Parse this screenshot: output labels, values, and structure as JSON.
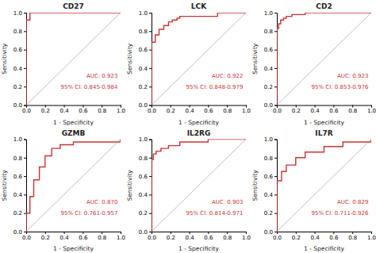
{
  "chart_data": [
    {
      "type": "line",
      "title": "CD27",
      "x_label": "1 - Specificity",
      "y_label": "Sensitivity",
      "xlim": [
        0.0,
        1.0
      ],
      "ylim": [
        0.0,
        1.0
      ],
      "grid": false,
      "xticks": [
        {
          "value": 0.0,
          "label": "0.0"
        },
        0.2,
        0.4,
        0.6,
        0.8,
        {
          "value": 1.0,
          "label": "1.0"
        }
      ],
      "yticks": [
        {
          "value": 0.0,
          "label": "0.0"
        },
        0.2,
        0.4,
        0.6,
        0.8,
        {
          "value": 1.0,
          "label": "1.0"
        }
      ],
      "series": [
        {
          "type": "line",
          "color": "#c0c0c0",
          "x": [
            0,
            1
          ],
          "values": [
            0,
            1
          ]
        },
        {
          "type": "step",
          "color": "#cc3333",
          "x": [
            0.0,
            0.0,
            0.0,
            0.04,
            0.04,
            1.0
          ],
          "values": [
            0.0,
            0.87,
            0.92,
            0.92,
            1.0,
            1.0
          ]
        }
      ],
      "annotations": [
        {
          "text": "AUC: 0.923",
          "color": "#cc3333"
        },
        {
          "text": "95% CI: 0.845-0.984",
          "color": "#cc3333"
        }
      ]
    },
    {
      "type": "line",
      "title": "LCK",
      "x_label": "1 - Specificity",
      "y_label": "Sensitivity",
      "xlim": [
        0.0,
        1.0
      ],
      "ylim": [
        0.0,
        1.0
      ],
      "grid": false,
      "xticks": [
        {
          "value": 0.0,
          "label": "0.0"
        },
        0.2,
        0.4,
        0.6,
        0.8,
        {
          "value": 1.0,
          "label": "1.0"
        }
      ],
      "yticks": [
        {
          "value": 0.0,
          "label": "0.0"
        },
        0.2,
        0.4,
        0.6,
        0.8,
        {
          "value": 1.0,
          "label": "1.0"
        }
      ],
      "series": [
        {
          "type": "line",
          "color": "#c0c0c0",
          "x": [
            0,
            1
          ],
          "values": [
            0,
            1
          ]
        },
        {
          "type": "step",
          "color": "#cc3333",
          "x": [
            0.0,
            0.0,
            0.04,
            0.08,
            0.13,
            0.18,
            0.22,
            0.27,
            0.3,
            0.7,
            0.7,
            1.0
          ],
          "values": [
            0.0,
            0.68,
            0.76,
            0.82,
            0.86,
            0.9,
            0.92,
            0.94,
            0.96,
            0.99,
            1.0,
            1.0
          ]
        }
      ],
      "annotations": [
        {
          "text": "AUC: 0.922",
          "color": "#cc3333"
        },
        {
          "text": "95% CI: 0.848-0.979",
          "color": "#cc3333"
        }
      ]
    },
    {
      "type": "line",
      "title": "CD2",
      "x_label": "1 - Specificity",
      "y_label": "Sensitivity",
      "xlim": [
        0.0,
        1.0
      ],
      "ylim": [
        0.0,
        1.0
      ],
      "grid": false,
      "xticks": [
        {
          "value": 0.0,
          "label": "0.0"
        },
        0.2,
        0.4,
        0.6,
        0.8,
        {
          "value": 1.0,
          "label": "1.0"
        }
      ],
      "yticks": [
        {
          "value": 0.0,
          "label": "0.0"
        },
        0.2,
        0.4,
        0.6,
        0.8,
        {
          "value": 1.0,
          "label": "1.0"
        }
      ],
      "series": [
        {
          "type": "line",
          "color": "#c0c0c0",
          "x": [
            0,
            1
          ],
          "values": [
            0,
            1
          ]
        },
        {
          "type": "step",
          "color": "#cc3333",
          "x": [
            0.0,
            0.0,
            0.02,
            0.04,
            0.07,
            0.1,
            0.16,
            0.3,
            1.0
          ],
          "values": [
            0.0,
            0.83,
            0.88,
            0.92,
            0.94,
            0.96,
            0.98,
            1.0,
            1.0
          ]
        }
      ],
      "annotations": [
        {
          "text": "AUC: 0.923",
          "color": "#cc3333"
        },
        {
          "text": "95% CI: 0.853-0.976",
          "color": "#cc3333"
        }
      ]
    },
    {
      "type": "line",
      "title": "GZMB",
      "x_label": "1 - Specificity",
      "y_label": "Sensitivity",
      "xlim": [
        0.0,
        1.0
      ],
      "ylim": [
        0.0,
        1.0
      ],
      "grid": false,
      "xticks": [
        {
          "value": 0.0,
          "label": "0.0"
        },
        0.2,
        0.4,
        0.6,
        0.8,
        {
          "value": 1.0,
          "label": "1.0"
        }
      ],
      "yticks": [
        {
          "value": 0.0,
          "label": "0.0"
        },
        0.2,
        0.4,
        0.6,
        0.8,
        {
          "value": 1.0,
          "label": "1.0"
        }
      ],
      "series": [
        {
          "type": "line",
          "color": "#c0c0c0",
          "x": [
            0,
            1
          ],
          "values": [
            0,
            1
          ]
        },
        {
          "type": "step",
          "color": "#cc3333",
          "x": [
            0.0,
            0.0,
            0.04,
            0.08,
            0.14,
            0.2,
            0.27,
            0.36,
            0.5,
            1.0
          ],
          "values": [
            0.0,
            0.2,
            0.38,
            0.56,
            0.7,
            0.82,
            0.9,
            0.94,
            0.97,
            1.0
          ]
        }
      ],
      "annotations": [
        {
          "text": "AUC: 0.870",
          "color": "#cc3333"
        },
        {
          "text": "95% CI: 0.761-0.957",
          "color": "#cc3333"
        }
      ]
    },
    {
      "type": "line",
      "title": "IL2RG",
      "x_label": "1 - Specificity",
      "y_label": "Sensitivity",
      "xlim": [
        0.0,
        1.0
      ],
      "ylim": [
        0.0,
        1.0
      ],
      "grid": false,
      "xticks": [
        {
          "value": 0.0,
          "label": "0.0"
        },
        0.2,
        0.4,
        0.6,
        0.8,
        {
          "value": 1.0,
          "label": "1.0"
        }
      ],
      "yticks": [
        {
          "value": 0.0,
          "label": "0.0"
        },
        0.2,
        0.4,
        0.6,
        0.8,
        {
          "value": 1.0,
          "label": "1.0"
        }
      ],
      "series": [
        {
          "type": "line",
          "color": "#c0c0c0",
          "x": [
            0,
            1
          ],
          "values": [
            0,
            1
          ]
        },
        {
          "type": "step",
          "color": "#cc3333",
          "x": [
            0.0,
            0.0,
            0.02,
            0.05,
            0.1,
            0.18,
            0.3,
            0.6,
            1.0
          ],
          "values": [
            0.0,
            0.78,
            0.84,
            0.87,
            0.9,
            0.93,
            0.97,
            1.0,
            1.0
          ]
        }
      ],
      "annotations": [
        {
          "text": "AUC: 0.903",
          "color": "#cc3333"
        },
        {
          "text": "95% CI: 0.814-0.971",
          "color": "#cc3333"
        }
      ]
    },
    {
      "type": "line",
      "title": "IL7R",
      "x_label": "1 - Specificity",
      "y_label": "Sensitivity",
      "xlim": [
        0.0,
        1.0
      ],
      "ylim": [
        0.0,
        1.0
      ],
      "grid": false,
      "xticks": [
        {
          "value": 0.0,
          "label": "0.0"
        },
        0.2,
        0.4,
        0.6,
        0.8,
        {
          "value": 1.0,
          "label": "1.0"
        }
      ],
      "yticks": [
        {
          "value": 0.0,
          "label": "0.0"
        },
        0.2,
        0.4,
        0.6,
        0.8,
        {
          "value": 1.0,
          "label": "1.0"
        }
      ],
      "series": [
        {
          "type": "line",
          "color": "#c0c0c0",
          "x": [
            0,
            1
          ],
          "values": [
            0,
            1
          ]
        },
        {
          "type": "step",
          "color": "#cc3333",
          "x": [
            0.0,
            0.0,
            0.05,
            0.1,
            0.2,
            0.3,
            0.5,
            0.7,
            1.0
          ],
          "values": [
            0.0,
            0.55,
            0.65,
            0.72,
            0.8,
            0.86,
            0.92,
            0.97,
            1.0
          ]
        }
      ],
      "annotations": [
        {
          "text": "AUC: 0.829",
          "color": "#cc3333"
        },
        {
          "text": "95% CI: 0.711-0.926",
          "color": "#cc3333"
        }
      ]
    }
  ]
}
